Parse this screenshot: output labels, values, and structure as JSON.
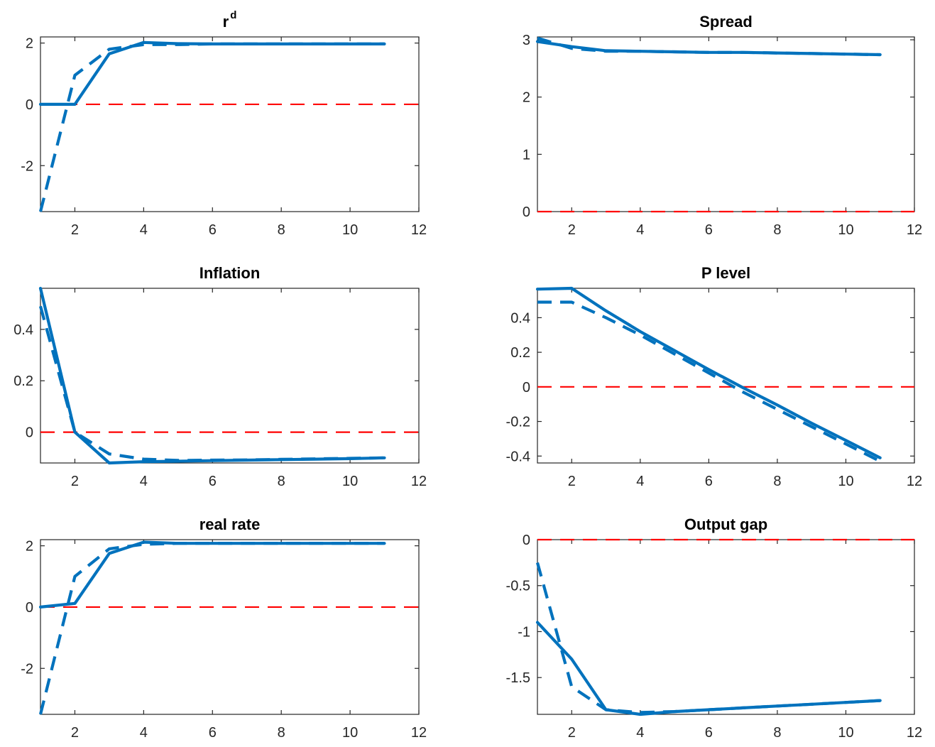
{
  "chart_data": [
    {
      "type": "line",
      "title": "r",
      "title_superscript": "d",
      "xlim": [
        1,
        12
      ],
      "ylim": [
        -3.5,
        2.2
      ],
      "xticks": [
        2,
        4,
        6,
        8,
        10,
        12
      ],
      "yticks": [
        -2,
        0,
        2
      ],
      "ytick_labels": [
        "-2",
        "0",
        "2"
      ],
      "grid": false,
      "colors": {
        "series": "#0072bd",
        "zero_line": "#ff0000"
      },
      "zero_line": 0,
      "series": [
        {
          "style": "solid",
          "x": [
            1,
            2,
            3,
            4,
            5,
            6,
            7,
            8,
            9,
            10,
            11
          ],
          "values": [
            0,
            0,
            1.65,
            2.02,
            1.98,
            1.97,
            1.97,
            1.97,
            1.97,
            1.97,
            1.97
          ]
        },
        {
          "style": "dashed",
          "x": [
            1,
            2,
            3,
            4,
            5,
            6,
            7,
            8,
            9,
            10,
            11
          ],
          "values": [
            -3.5,
            0.95,
            1.8,
            1.95,
            1.95,
            1.97,
            1.97,
            1.97,
            1.97,
            1.97,
            1.97
          ]
        }
      ]
    },
    {
      "type": "line",
      "title": "Spread",
      "xlim": [
        1,
        12
      ],
      "ylim": [
        0,
        3.05
      ],
      "xticks": [
        2,
        4,
        6,
        8,
        10,
        12
      ],
      "yticks": [
        0,
        1,
        2,
        3
      ],
      "ytick_labels": [
        "0",
        "1",
        "2",
        "3"
      ],
      "grid": false,
      "colors": {
        "series": "#0072bd",
        "zero_line": "#ff0000"
      },
      "zero_line": 0,
      "series": [
        {
          "style": "solid",
          "x": [
            1,
            2,
            3,
            4,
            5,
            6,
            7,
            8,
            9,
            10,
            11
          ],
          "values": [
            2.97,
            2.88,
            2.81,
            2.8,
            2.79,
            2.78,
            2.78,
            2.77,
            2.76,
            2.75,
            2.74
          ]
        },
        {
          "style": "dashed",
          "x": [
            1,
            2,
            3,
            4,
            5,
            6,
            7,
            8,
            9,
            10,
            11
          ],
          "values": [
            3.03,
            2.85,
            2.8,
            2.8,
            2.79,
            2.78,
            2.78,
            2.77,
            2.76,
            2.75,
            2.74
          ]
        }
      ]
    },
    {
      "type": "line",
      "title": "Inflation",
      "xlim": [
        1,
        12
      ],
      "ylim": [
        -0.12,
        0.56
      ],
      "xticks": [
        2,
        4,
        6,
        8,
        10,
        12
      ],
      "yticks": [
        0,
        0.2,
        0.4
      ],
      "ytick_labels": [
        "0",
        "0.2",
        "0.4"
      ],
      "grid": false,
      "colors": {
        "series": "#0072bd",
        "zero_line": "#ff0000"
      },
      "zero_line": 0,
      "series": [
        {
          "style": "solid",
          "x": [
            1,
            2,
            3,
            4,
            5,
            6,
            7,
            8,
            9,
            10,
            11
          ],
          "values": [
            0.56,
            0,
            -0.12,
            -0.115,
            -0.113,
            -0.111,
            -0.109,
            -0.107,
            -0.105,
            -0.103,
            -0.1
          ]
        },
        {
          "style": "dashed",
          "x": [
            1,
            2,
            3,
            4,
            5,
            6,
            7,
            8,
            9,
            10,
            11
          ],
          "values": [
            0.49,
            0,
            -0.085,
            -0.105,
            -0.11,
            -0.109,
            -0.108,
            -0.106,
            -0.104,
            -0.102,
            -0.1
          ]
        }
      ]
    },
    {
      "type": "line",
      "title": "P level",
      "xlim": [
        1,
        12
      ],
      "ylim": [
        -0.44,
        0.57
      ],
      "xticks": [
        2,
        4,
        6,
        8,
        10,
        12
      ],
      "yticks": [
        -0.4,
        -0.2,
        0,
        0.2,
        0.4
      ],
      "ytick_labels": [
        "-0.4",
        "-0.2",
        "0",
        "0.2",
        "0.4"
      ],
      "grid": false,
      "colors": {
        "series": "#0072bd",
        "zero_line": "#ff0000"
      },
      "zero_line": 0,
      "series": [
        {
          "style": "solid",
          "x": [
            1,
            2,
            3,
            4,
            5,
            6,
            7,
            8,
            9,
            10,
            11
          ],
          "values": [
            0.565,
            0.57,
            0.44,
            0.32,
            0.21,
            0.1,
            -0.005,
            -0.105,
            -0.21,
            -0.31,
            -0.41
          ]
        },
        {
          "style": "dashed",
          "x": [
            1,
            2,
            3,
            4,
            5,
            6,
            7,
            8,
            9,
            10,
            11
          ],
          "values": [
            0.49,
            0.49,
            0.4,
            0.3,
            0.19,
            0.08,
            -0.03,
            -0.13,
            -0.23,
            -0.33,
            -0.43
          ]
        }
      ]
    },
    {
      "type": "line",
      "title": "real rate",
      "xlim": [
        1,
        12
      ],
      "ylim": [
        -3.5,
        2.2
      ],
      "xticks": [
        2,
        4,
        6,
        8,
        10,
        12
      ],
      "yticks": [
        -2,
        0,
        2
      ],
      "ytick_labels": [
        "-2",
        "0",
        "2"
      ],
      "grid": false,
      "colors": {
        "series": "#0072bd",
        "zero_line": "#ff0000"
      },
      "zero_line": 0,
      "series": [
        {
          "style": "solid",
          "x": [
            1,
            2,
            3,
            4,
            5,
            6,
            7,
            8,
            9,
            10,
            11
          ],
          "values": [
            0,
            0.12,
            1.75,
            2.12,
            2.08,
            2.08,
            2.08,
            2.08,
            2.08,
            2.08,
            2.08
          ]
        },
        {
          "style": "dashed",
          "x": [
            1,
            2,
            3,
            4,
            5,
            6,
            7,
            8,
            9,
            10,
            11
          ],
          "values": [
            -3.5,
            1.0,
            1.9,
            2.05,
            2.08,
            2.08,
            2.08,
            2.08,
            2.08,
            2.08,
            2.08
          ]
        }
      ]
    },
    {
      "type": "line",
      "title": "Output gap",
      "xlim": [
        1,
        12
      ],
      "ylim": [
        -1.9,
        0
      ],
      "xticks": [
        2,
        4,
        6,
        8,
        10,
        12
      ],
      "yticks": [
        -1.5,
        -1,
        -0.5,
        0
      ],
      "ytick_labels": [
        "-1.5",
        "-1",
        "-0.5",
        "0"
      ],
      "grid": false,
      "colors": {
        "series": "#0072bd",
        "zero_line": "#ff0000"
      },
      "zero_line": 0,
      "series": [
        {
          "style": "solid",
          "x": [
            1,
            2,
            3,
            4,
            5,
            6,
            7,
            8,
            9,
            10,
            11
          ],
          "values": [
            -0.9,
            -1.3,
            -1.85,
            -1.9,
            -1.87,
            -1.85,
            -1.83,
            -1.81,
            -1.79,
            -1.77,
            -1.75
          ]
        },
        {
          "style": "dashed",
          "x": [
            1,
            2,
            3,
            4,
            5,
            6,
            7,
            8,
            9,
            10,
            11
          ],
          "values": [
            -0.25,
            -1.6,
            -1.85,
            -1.88,
            -1.87,
            -1.85,
            -1.83,
            -1.81,
            -1.79,
            -1.77,
            -1.75
          ]
        }
      ]
    }
  ]
}
